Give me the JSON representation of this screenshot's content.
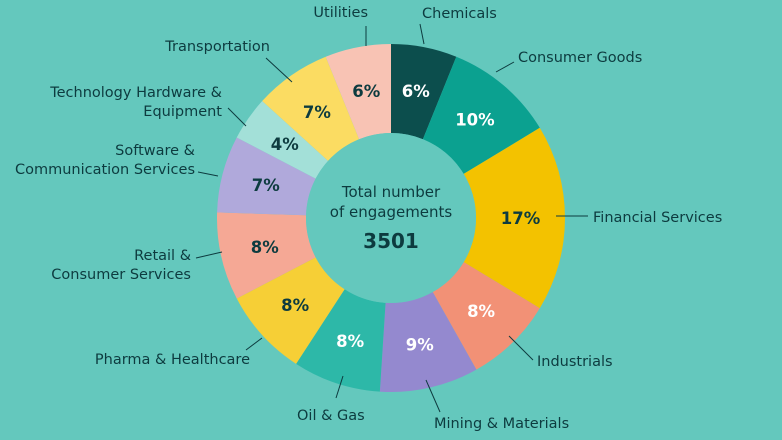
{
  "chart_data": {
    "type": "pie",
    "variant": "donut",
    "center_label": [
      "Total number",
      "of engagements"
    ],
    "total": "3501",
    "slices": [
      {
        "name": "Chemicals",
        "value": 6,
        "label": "6%",
        "color": "#0c4e4d",
        "text_color": "#ffffff"
      },
      {
        "name": "Consumer Goods",
        "value": 10,
        "label": "10%",
        "color": "#0ba190",
        "text_color": "#ffffff"
      },
      {
        "name": "Financial Services",
        "value": 17,
        "label": "17%",
        "color": "#f3c200",
        "text_color": "#0d3b3f"
      },
      {
        "name": "Industrials",
        "value": 8,
        "label": "8%",
        "color": "#f29176",
        "text_color": "#ffffff"
      },
      {
        "name": "Mining & Materials",
        "value": 9,
        "label": "9%",
        "color": "#9489cf",
        "text_color": "#ffffff"
      },
      {
        "name": "Oil & Gas",
        "value": 8,
        "label": "8%",
        "color": "#2db8a8",
        "text_color": "#ffffff"
      },
      {
        "name": "Pharma & Healthcare",
        "value": 8,
        "label": "8%",
        "color": "#f6cf36",
        "text_color": "#0d3b3f"
      },
      {
        "name": "Retail & Consumer Services",
        "value": 8,
        "label": "8%",
        "color": "#f5a895",
        "text_color": "#0d3b3f"
      },
      {
        "name": "Software & Communication Services",
        "value": 7,
        "label": "7%",
        "color": "#b0a9db",
        "text_color": "#0d3b3f"
      },
      {
        "name": "Technology Hardware & Equipment",
        "value": 4,
        "label": "4%",
        "color": "#a3e0d8",
        "text_color": "#0d3b3f"
      },
      {
        "name": "Transportation",
        "value": 7,
        "label": "7%",
        "color": "#fbdc62",
        "text_color": "#0d3b3f"
      },
      {
        "name": "Utilities",
        "value": 6,
        "label": "6%",
        "color": "#f8c3b4",
        "text_color": "#0d3b3f"
      }
    ]
  }
}
